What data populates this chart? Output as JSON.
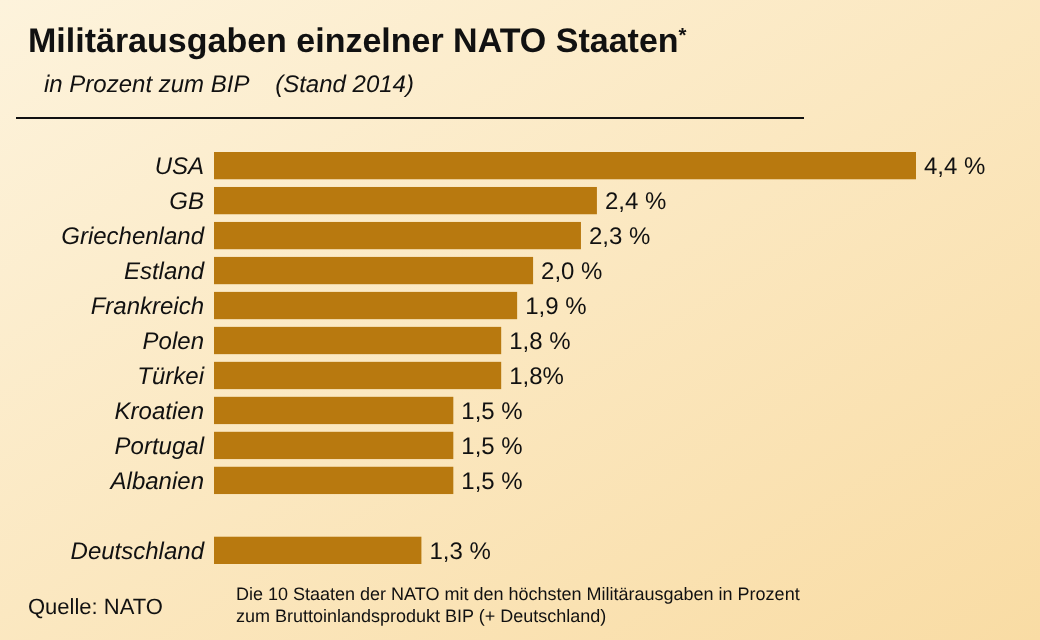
{
  "chart_data": {
    "type": "bar",
    "orientation": "horizontal",
    "title": "Militärausgaben einzelner NATO Staaten$^{*}$",
    "subtitle": "in Prozent zum BIP    (Stand 2014)",
    "categories": [
      "USA",
      "GB",
      "Griechenland",
      "Estland",
      "Frankreich",
      "Polen",
      "Türkei",
      "Kroatien",
      "Portugal",
      "Albanien",
      null,
      "Deutschland"
    ],
    "values": [
      4.4,
      2.4,
      2.3,
      2.0,
      1.9,
      1.8,
      1.8,
      1.5,
      1.5,
      1.5,
      null,
      1.3
    ],
    "value_labels": [
      "4,4 %",
      "2,4 %",
      "2,3 %",
      "2,0 %",
      "1,9 %",
      "1,8 %",
      "1,8%",
      "1,5 %",
      "1,5 %",
      "1,5 %",
      null,
      "1,3 %"
    ],
    "color": "#b8790f",
    "annotations": [
      "Quelle: NATO",
      "Die 10 Staaten der NATO mit den höchsten Militärausgaben in Prozent\nzum Bruttoinlandsprodukt BIP (+ Deutschland)"
    ]
  }
}
